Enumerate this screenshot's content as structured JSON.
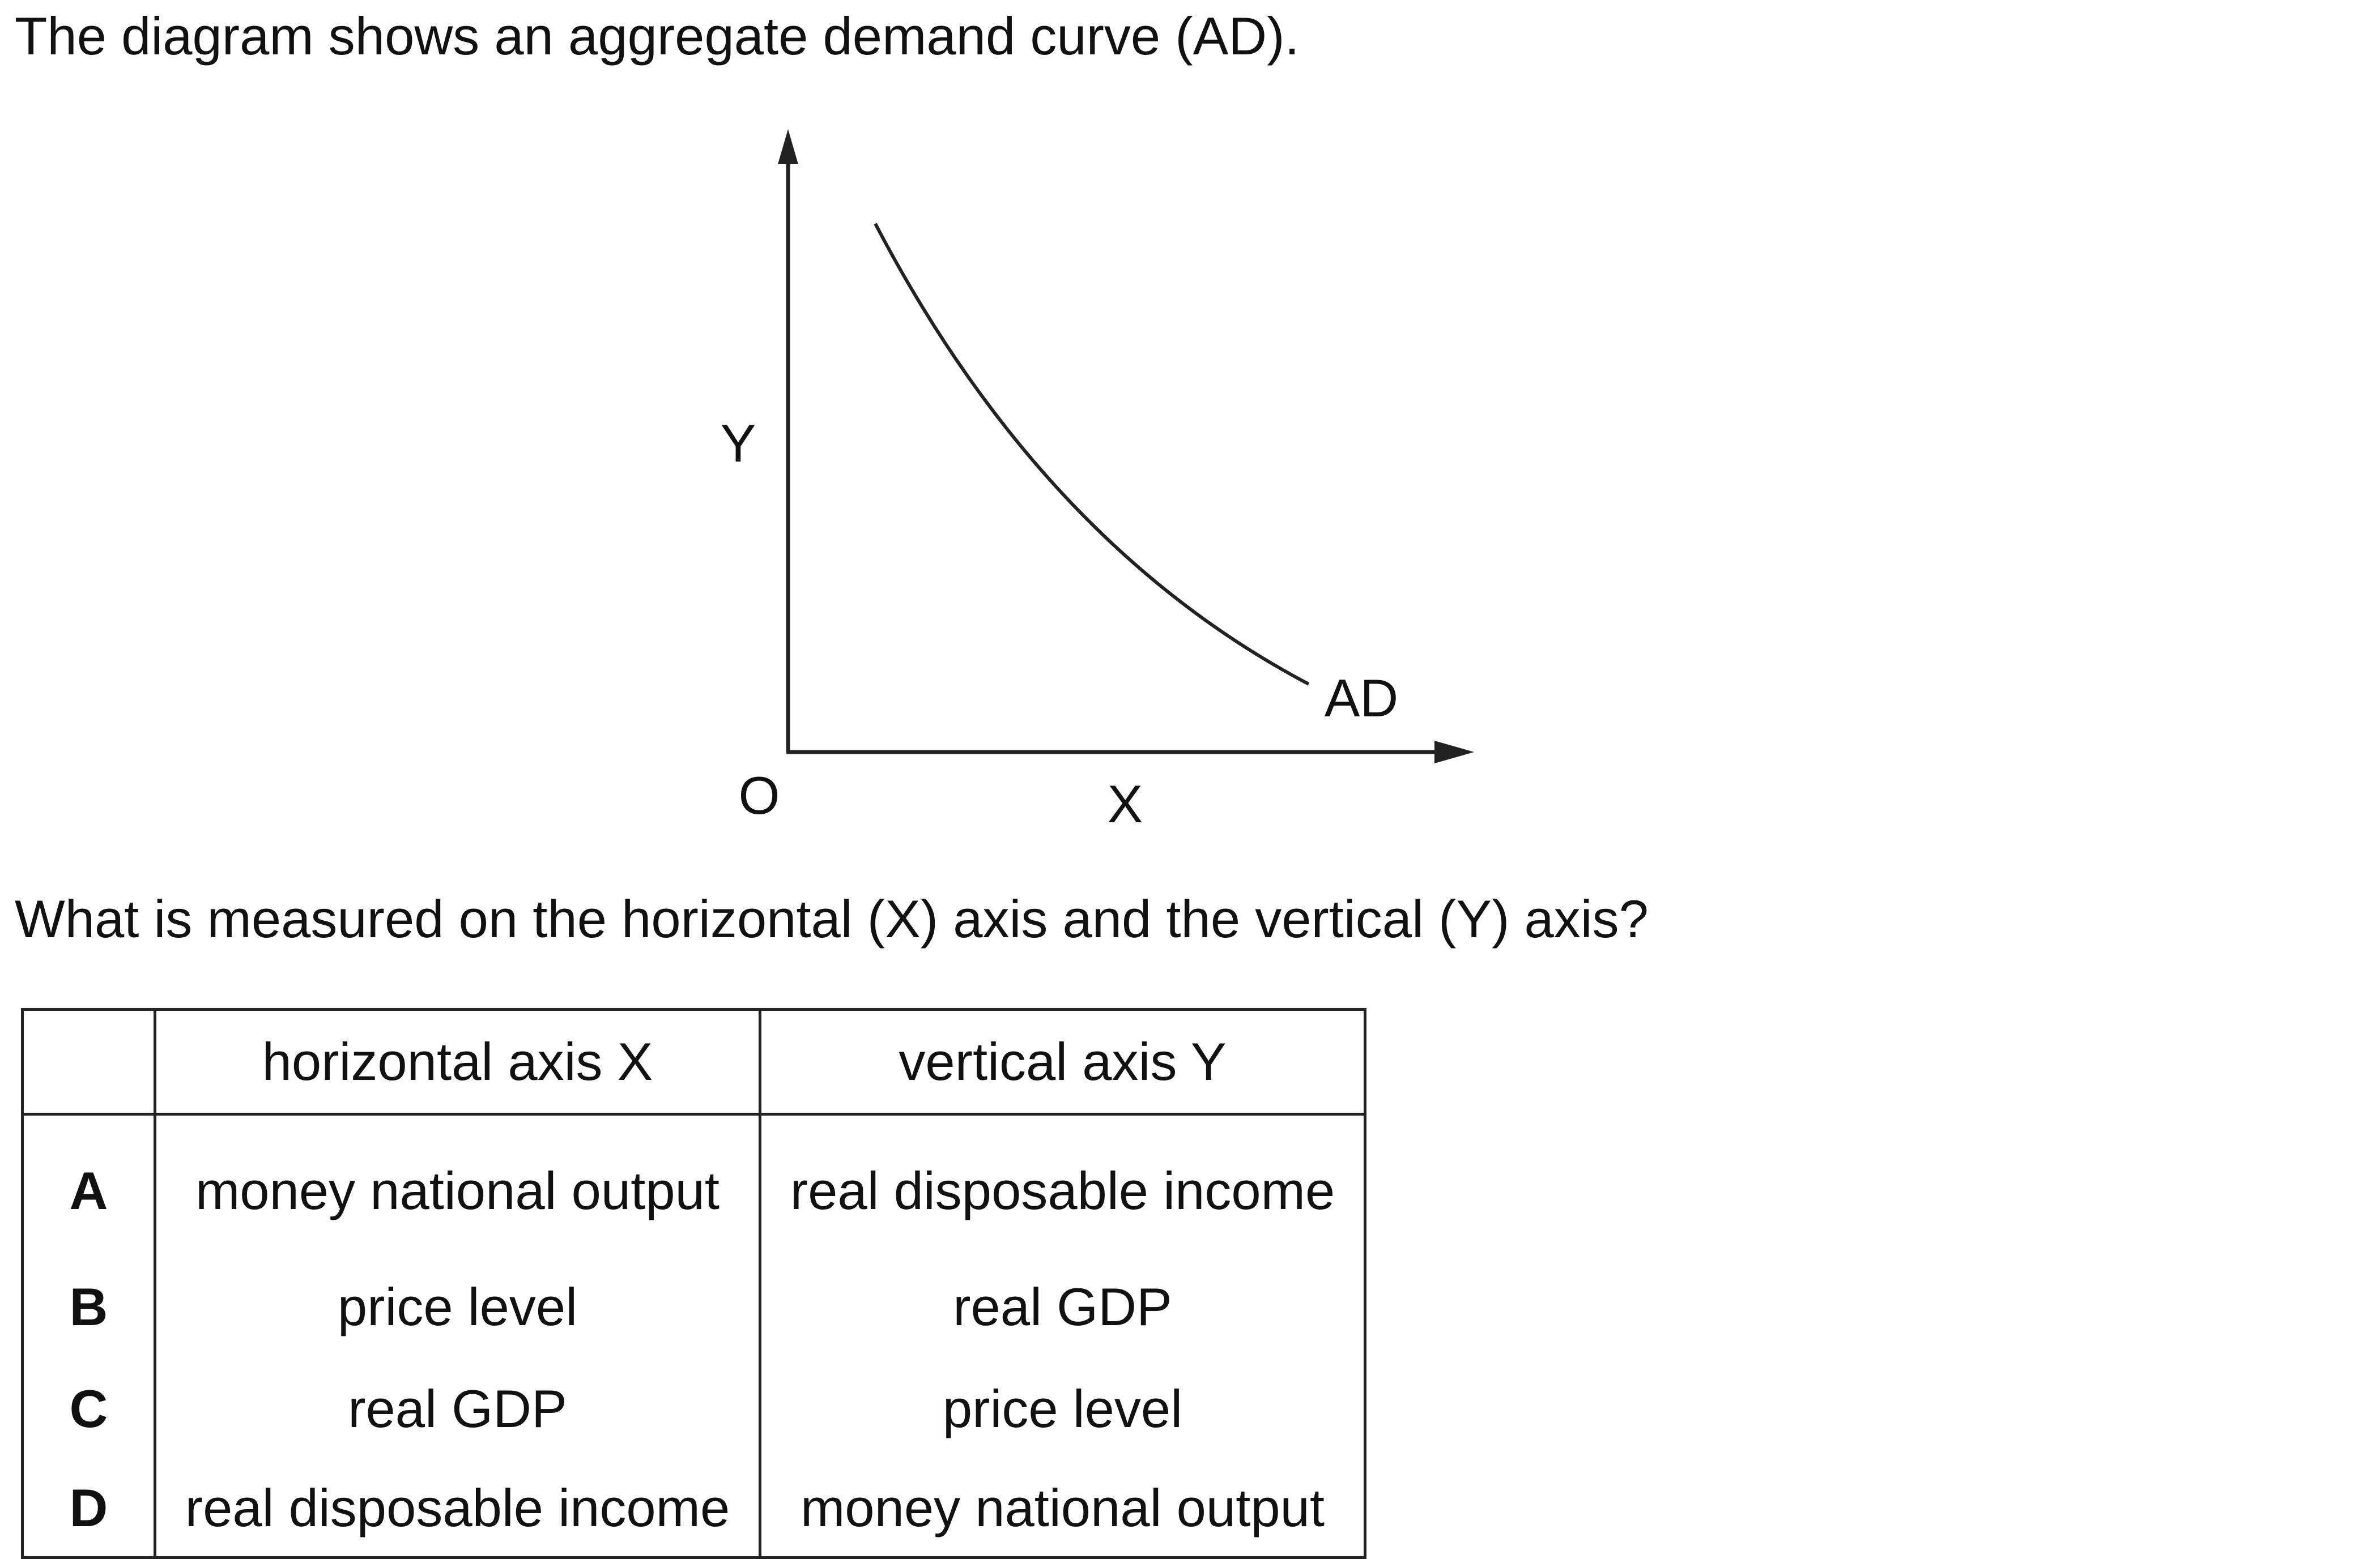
{
  "intro_text": "The diagram shows an aggregate demand curve (AD).",
  "diagram": {
    "y_axis_label": "Y",
    "x_axis_label": "X",
    "origin_label": "O",
    "curve_label": "AD",
    "line_color": "#222222"
  },
  "question_text": "What is measured on the horizontal (X) axis and the vertical (Y) axis?",
  "table": {
    "headers": [
      "",
      "horizontal axis X",
      "vertical axis Y"
    ],
    "rows": [
      {
        "option": "A",
        "horizontal": "money national output",
        "vertical": "real disposable income"
      },
      {
        "option": "B",
        "horizontal": "price level",
        "vertical": "real GDP"
      },
      {
        "option": "C",
        "horizontal": "real GDP",
        "vertical": "price level"
      },
      {
        "option": "D",
        "horizontal": "real disposable income",
        "vertical": "money national output"
      }
    ]
  }
}
